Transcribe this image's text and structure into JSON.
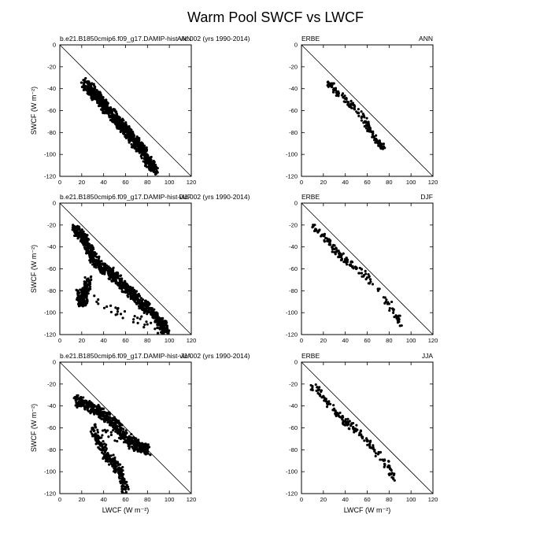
{
  "figure": {
    "title": "Warm Pool SWCF vs LWCF"
  },
  "chart_data": [
    {
      "type": "scatter",
      "left_label": "b.e21.B1850cmip6.f09_g17.DAMIP-hist-vlc.002 (yrs 1990-2014)",
      "right_label": "ANN",
      "xlabel": "",
      "ylabel": "SWCF (W m⁻²)",
      "xlim": [
        0,
        120
      ],
      "ylim": [
        -120,
        0
      ],
      "xticks": [
        "0",
        "20",
        "40",
        "60",
        "80",
        "100",
        "120"
      ],
      "yticks": [
        "0",
        "-20",
        "-40",
        "-60",
        "-80",
        "-100",
        "-120"
      ],
      "reference_line": "y = -x",
      "point_count_estimate": 900,
      "series": [
        {
          "values": [
            [
              22,
              -35
            ],
            [
              25,
              -38
            ],
            [
              28,
              -40
            ],
            [
              30,
              -44
            ],
            [
              32,
              -46
            ],
            [
              35,
              -48
            ],
            [
              38,
              -52
            ],
            [
              40,
              -55
            ],
            [
              42,
              -58
            ],
            [
              45,
              -60
            ],
            [
              48,
              -63
            ],
            [
              50,
              -66
            ],
            [
              52,
              -68
            ],
            [
              55,
              -72
            ],
            [
              58,
              -75
            ],
            [
              60,
              -78
            ],
            [
              62,
              -80
            ],
            [
              65,
              -84
            ],
            [
              68,
              -88
            ],
            [
              70,
              -90
            ],
            [
              72,
              -92
            ],
            [
              75,
              -96
            ],
            [
              78,
              -100
            ],
            [
              80,
              -105
            ],
            [
              82,
              -108
            ],
            [
              85,
              -112
            ],
            [
              87,
              -116
            ]
          ]
        }
      ]
    },
    {
      "type": "scatter",
      "left_label": "ERBE",
      "right_label": "ANN",
      "xlabel": "",
      "ylabel": "",
      "xlim": [
        0,
        120
      ],
      "ylim": [
        -120,
        0
      ],
      "xticks": [
        "0",
        "20",
        "40",
        "60",
        "80",
        "100",
        "120"
      ],
      "yticks": [
        "0",
        "-20",
        "-40",
        "-60",
        "-80",
        "-100",
        "-120"
      ],
      "reference_line": "y = -x",
      "point_count_estimate": 150,
      "series": [
        {
          "values": [
            [
              24,
              -34
            ],
            [
              27,
              -36
            ],
            [
              30,
              -40
            ],
            [
              34,
              -44
            ],
            [
              38,
              -48
            ],
            [
              42,
              -52
            ],
            [
              45,
              -55
            ],
            [
              48,
              -58
            ],
            [
              52,
              -62
            ],
            [
              55,
              -66
            ],
            [
              58,
              -70
            ],
            [
              60,
              -74
            ],
            [
              63,
              -78
            ],
            [
              65,
              -82
            ],
            [
              67,
              -86
            ],
            [
              70,
              -90
            ],
            [
              73,
              -92
            ],
            [
              76,
              -94
            ]
          ]
        }
      ]
    },
    {
      "type": "scatter",
      "left_label": "b.e21.B1850cmip6.f09_g17.DAMIP-hist-vlc.002 (yrs 1990-2014)",
      "right_label": "DJF",
      "xlabel": "",
      "ylabel": "SWCF (W m⁻²)",
      "xlim": [
        0,
        120
      ],
      "ylim": [
        -120,
        0
      ],
      "xticks": [
        "0",
        "20",
        "40",
        "60",
        "80",
        "100",
        "120"
      ],
      "yticks": [
        "0",
        "-20",
        "-40",
        "-60",
        "-80",
        "-100",
        "-120"
      ],
      "reference_line": "y = -x",
      "point_count_estimate": 1100,
      "series": [
        {
          "values": [
            [
              14,
              -24
            ],
            [
              18,
              -28
            ],
            [
              22,
              -32
            ],
            [
              25,
              -38
            ],
            [
              28,
              -44
            ],
            [
              30,
              -50
            ],
            [
              35,
              -55
            ],
            [
              40,
              -60
            ],
            [
              45,
              -62
            ],
            [
              50,
              -68
            ],
            [
              55,
              -72
            ],
            [
              60,
              -78
            ],
            [
              65,
              -82
            ],
            [
              70,
              -86
            ],
            [
              75,
              -92
            ],
            [
              80,
              -96
            ],
            [
              85,
              -102
            ],
            [
              90,
              -108
            ],
            [
              95,
              -112
            ],
            [
              98,
              -118
            ],
            [
              18,
              -82
            ],
            [
              20,
              -90
            ],
            [
              22,
              -88
            ],
            [
              24,
              -78
            ],
            [
              26,
              -70
            ]
          ]
        }
      ]
    },
    {
      "type": "scatter",
      "left_label": "ERBE",
      "right_label": "DJF",
      "xlabel": "",
      "ylabel": "",
      "xlim": [
        0,
        120
      ],
      "ylim": [
        -120,
        0
      ],
      "xticks": [
        "0",
        "20",
        "40",
        "60",
        "80",
        "100",
        "120"
      ],
      "yticks": [
        "0",
        "-20",
        "-40",
        "-60",
        "-80",
        "-100",
        "-120"
      ],
      "reference_line": "y = -x",
      "point_count_estimate": 150,
      "series": [
        {
          "values": [
            [
              10,
              -22
            ],
            [
              15,
              -26
            ],
            [
              20,
              -30
            ],
            [
              25,
              -35
            ],
            [
              28,
              -40
            ],
            [
              32,
              -44
            ],
            [
              36,
              -48
            ],
            [
              40,
              -52
            ],
            [
              45,
              -56
            ],
            [
              50,
              -60
            ],
            [
              55,
              -64
            ],
            [
              60,
              -68
            ],
            [
              65,
              -74
            ],
            [
              70,
              -80
            ],
            [
              75,
              -86
            ],
            [
              80,
              -92
            ],
            [
              84,
              -98
            ],
            [
              88,
              -104
            ],
            [
              90,
              -112
            ]
          ]
        }
      ]
    },
    {
      "type": "scatter",
      "left_label": "b.e21.B1850cmip6.f09_g17.DAMIP-hist-vlc.002 (yrs 1990-2014)",
      "right_label": "JJA",
      "xlabel": "LWCF (W m⁻²)",
      "ylabel": "SWCF (W m⁻²)",
      "xlim": [
        0,
        120
      ],
      "ylim": [
        -120,
        0
      ],
      "xticks": [
        "0",
        "20",
        "40",
        "60",
        "80",
        "100",
        "120"
      ],
      "yticks": [
        "0",
        "-20",
        "-40",
        "-60",
        "-80",
        "-100",
        "-120"
      ],
      "reference_line": "y = -x",
      "point_count_estimate": 800,
      "series": [
        {
          "values": [
            [
              15,
              -34
            ],
            [
              20,
              -38
            ],
            [
              25,
              -40
            ],
            [
              30,
              -42
            ],
            [
              35,
              -44
            ],
            [
              40,
              -48
            ],
            [
              45,
              -52
            ],
            [
              50,
              -56
            ],
            [
              55,
              -62
            ],
            [
              60,
              -68
            ],
            [
              65,
              -72
            ],
            [
              70,
              -76
            ],
            [
              75,
              -78
            ],
            [
              80,
              -80
            ],
            [
              30,
              -60
            ],
            [
              35,
              -70
            ],
            [
              40,
              -80
            ],
            [
              45,
              -88
            ],
            [
              50,
              -92
            ],
            [
              55,
              -100
            ],
            [
              58,
              -110
            ],
            [
              60,
              -116
            ]
          ]
        }
      ]
    },
    {
      "type": "scatter",
      "left_label": "ERBE",
      "right_label": "JJA",
      "xlabel": "LWCF (W m⁻²)",
      "ylabel": "",
      "xlim": [
        0,
        120
      ],
      "ylim": [
        -120,
        0
      ],
      "xticks": [
        "0",
        "20",
        "40",
        "60",
        "80",
        "100",
        "120"
      ],
      "yticks": [
        "0",
        "-20",
        "-40",
        "-60",
        "-80",
        "-100",
        "-120"
      ],
      "reference_line": "y = -x",
      "point_count_estimate": 170,
      "series": [
        {
          "values": [
            [
              10,
              -22
            ],
            [
              15,
              -26
            ],
            [
              20,
              -32
            ],
            [
              25,
              -38
            ],
            [
              30,
              -44
            ],
            [
              35,
              -50
            ],
            [
              40,
              -54
            ],
            [
              45,
              -58
            ],
            [
              50,
              -62
            ],
            [
              55,
              -68
            ],
            [
              60,
              -72
            ],
            [
              65,
              -78
            ],
            [
              70,
              -84
            ],
            [
              75,
              -90
            ],
            [
              80,
              -96
            ],
            [
              85,
              -108
            ]
          ]
        }
      ]
    }
  ],
  "colors": {
    "marker": "#000000",
    "axis": "#000000",
    "background": "#ffffff"
  }
}
